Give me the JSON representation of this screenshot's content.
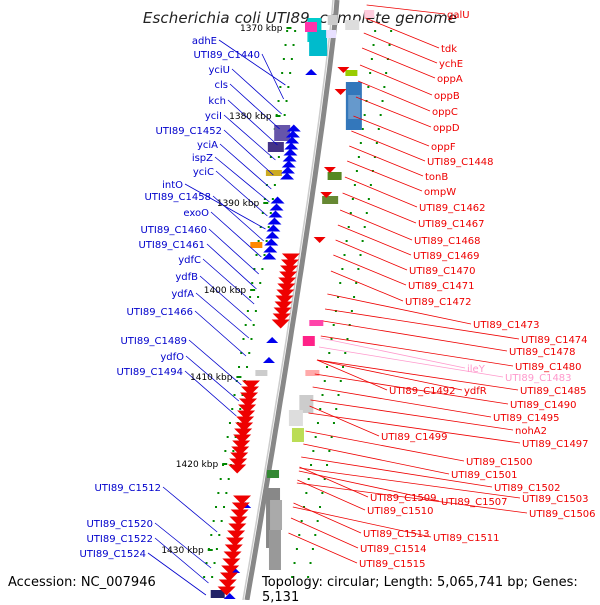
{
  "header": {
    "title": "Escherichia coli UTI89, complete genome"
  },
  "footer": {
    "accession": "Accession: NC_007946",
    "summary": "Topology: circular; Length: 5,065,741 bp; Genes: 5,131"
  },
  "scale_labels": [
    "1370 kbp",
    "1380 kbp",
    "1390 kbp",
    "1400 kbp",
    "1410 kbp",
    "1420 kbp",
    "1430 kbp"
  ],
  "colors": {
    "forward_label": "#0000cc",
    "reverse_label": "#ee0000",
    "rna_label": "#ff99cc",
    "backbone": "#888888",
    "tick": "#008800"
  },
  "left_genes": [
    "adhE",
    "UTI89_C1440",
    "yciU",
    "cls",
    "kch",
    "yciI",
    "UTI89_C1452",
    "yciA",
    "ispZ",
    "yciC",
    "intO",
    "UTI89_C1458",
    "exoO",
    "UTI89_C1460",
    "UTI89_C1461",
    "ydfC",
    "ydfB",
    "ydfA",
    "UTI89_C1466",
    "UTI89_C1489",
    "ydfO",
    "UTI89_C1494",
    "UTI89_C1512",
    "UTI89_C1520",
    "UTI89_C1522",
    "UTI89_C1524"
  ],
  "right_genes": [
    "galU",
    "tdk",
    "ychE",
    "oppA",
    "oppB",
    "oppC",
    "oppD",
    "oppF",
    "UTI89_C1448",
    "tonB",
    "ompW",
    "UTI89_C1462",
    "UTI89_C1467",
    "UTI89_C1468",
    "UTI89_C1469",
    "UTI89_C1470",
    "UTI89_C1471",
    "UTI89_C1472",
    "UTI89_C1473",
    "UTI89_C1474",
    "UTI89_C1478",
    "UTI89_C1480",
    "ileY",
    "UTI89_C1483",
    "UTI89_C1485",
    "UTI89_C1492",
    "ydfR",
    "UTI89_C1490",
    "UTI89_C1495",
    "nohA2",
    "UTI89_C1497",
    "UTI89_C1499",
    "UTI89_C1500",
    "UTI89_C1501",
    "UTI89_C1502",
    "UTI89_C1503",
    "UTI89_C1506",
    "UTI89_C1509",
    "UTI89_C1507",
    "UTI89_C1510",
    "UTI89_C1513",
    "UTI89_C1511",
    "UTI89_C1514",
    "UTI89_C1515"
  ]
}
